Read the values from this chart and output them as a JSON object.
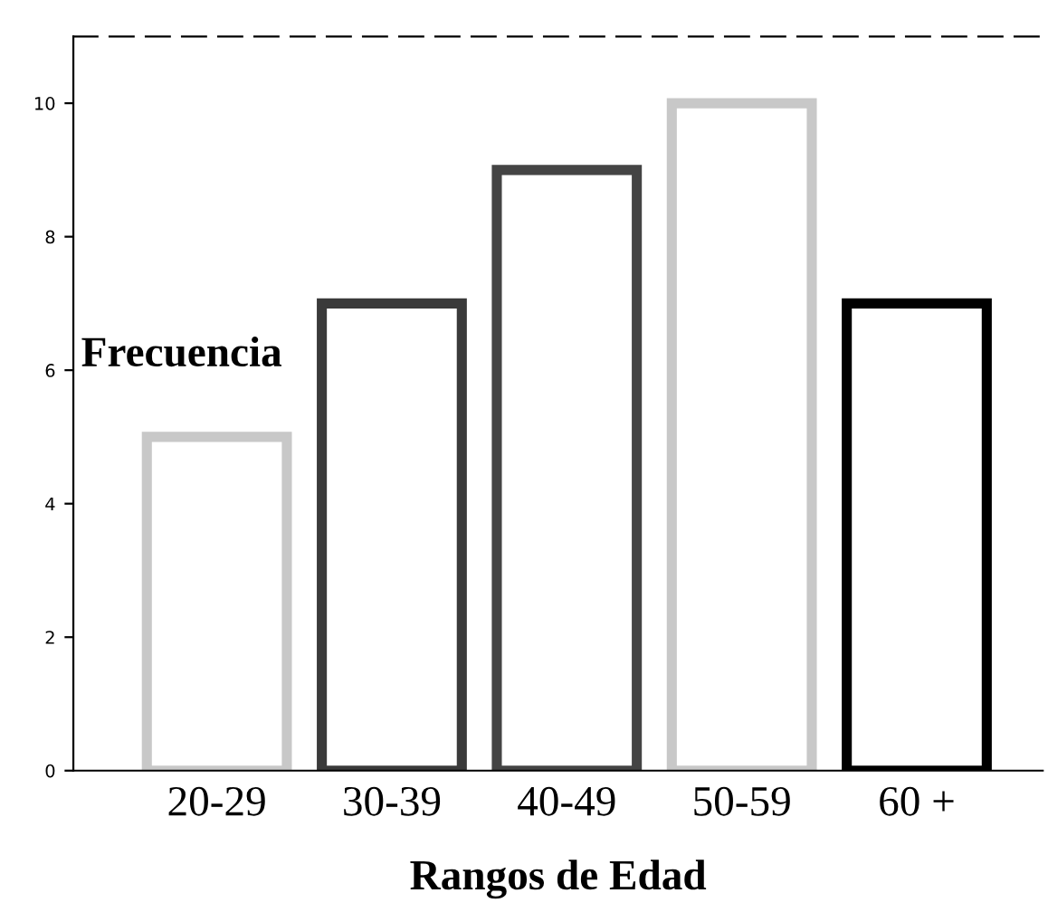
{
  "chart_data": {
    "type": "bar",
    "xlabel": "Rangos de Edad",
    "ylabel": "Frecuencia",
    "categories": [
      "20-29",
      "30-39",
      "40-49",
      "50-59",
      "60 +"
    ],
    "values": [
      5,
      7,
      9,
      10,
      7
    ],
    "colors": [
      "#c8c8c8",
      "#3a3a3a",
      "#444444",
      "#c8c8c8",
      "#000000"
    ],
    "ylim": [
      0,
      11
    ],
    "yticks": [
      0,
      2,
      4,
      6,
      8,
      10
    ],
    "grid": false,
    "legend": false
  }
}
